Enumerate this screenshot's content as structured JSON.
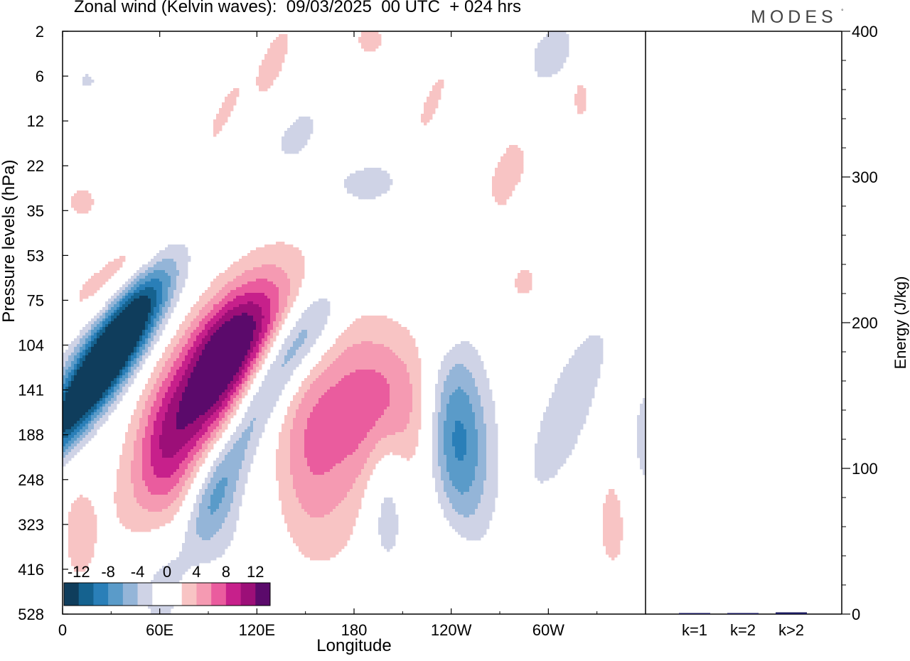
{
  "header": {
    "title": "Zonal wind (Kelvin waves):  09/03/2025  00 UTC  + 024 hrs",
    "logo": "MODES",
    "logo_mark": "°"
  },
  "chart_data": [
    {
      "type": "heatmap",
      "title": "Zonal wind (Kelvin waves):  09/03/2025  00 UTC  + 024 hrs",
      "xlabel": "Longitude",
      "ylabel": "Pressure levels (hPa)",
      "x_ticks": [
        "0",
        "60E",
        "120E",
        "180",
        "120W",
        "60W"
      ],
      "x_tick_values_deg": [
        0,
        60,
        120,
        180,
        240,
        300
      ],
      "xlim_deg": [
        0,
        360
      ],
      "y_ticks": [
        "2",
        "6",
        "12",
        "22",
        "35",
        "53",
        "75",
        "104",
        "141",
        "188",
        "248",
        "323",
        "416",
        "528"
      ],
      "y_axis_top_to_bottom": true,
      "colorbar": {
        "labels": [
          "-12",
          "-8",
          "-4",
          "0",
          "4",
          "8",
          "12"
        ],
        "levels": [
          -14,
          -12,
          -10,
          -8,
          -6,
          -4,
          -2,
          2,
          4,
          6,
          8,
          10,
          12,
          14
        ],
        "colors": [
          "#0f3d5c",
          "#15628f",
          "#2a7fb8",
          "#5a9bc9",
          "#94b5d8",
          "#cfd3e6",
          "#ffffff",
          "#ffffff",
          "#f8c4c4",
          "#f59ab2",
          "#ea5c9e",
          "#c7208b",
          "#9c0f78",
          "#5b0a6b"
        ]
      },
      "features": [
        {
          "lon": 15,
          "level_index": 8.0,
          "value": -13,
          "sx": 11,
          "sy": 1.4,
          "tilt": -0.7
        },
        {
          "lon": 30,
          "level_index": 7.1,
          "value": -8,
          "sx": 16,
          "sy": 1.1,
          "tilt": -0.6
        },
        {
          "lon": 42,
          "level_index": 6.3,
          "value": -4,
          "sx": 14,
          "sy": 0.8,
          "tilt": -0.55
        },
        {
          "lon": 50,
          "level_index": 5.7,
          "value": -2.5,
          "sx": 12,
          "sy": 0.6,
          "tilt": -0.5
        },
        {
          "lon": 28,
          "level_index": 5.9,
          "value": 3.5,
          "sx": 20,
          "sy": 0.6,
          "tilt": -0.55
        },
        {
          "lon": 45,
          "level_index": 5.1,
          "value": 2.5,
          "sx": 12,
          "sy": 0.45,
          "tilt": -0.5
        },
        {
          "lon": 88,
          "level_index": 8.1,
          "value": 9,
          "sx": 20,
          "sy": 1.7,
          "tilt": -0.55
        },
        {
          "lon": 100,
          "level_index": 7.3,
          "value": 6,
          "sx": 18,
          "sy": 1.2,
          "tilt": -0.5
        },
        {
          "lon": 108,
          "level_index": 6.7,
          "value": 3,
          "sx": 24,
          "sy": 0.8,
          "tilt": -0.5
        },
        {
          "lon": 62,
          "level_index": 9.5,
          "value": 3,
          "sx": 12,
          "sy": 1.4,
          "tilt": 0
        },
        {
          "lon": 105,
          "level_index": 9.5,
          "value": -5,
          "sx": 10,
          "sy": 1.6,
          "tilt": -0.5
        },
        {
          "lon": 95,
          "level_index": 10.7,
          "value": -3,
          "sx": 12,
          "sy": 1.0,
          "tilt": 0
        },
        {
          "lon": 138,
          "level_index": 7.3,
          "value": -5,
          "sx": 14,
          "sy": 1.0,
          "tilt": -0.6
        },
        {
          "lon": 152,
          "level_index": 6.6,
          "value": -3,
          "sx": 12,
          "sy": 0.7,
          "tilt": -0.5
        },
        {
          "lon": 150,
          "level_index": 9.3,
          "value": 4.5,
          "sx": 14,
          "sy": 1.6,
          "tilt": 0
        },
        {
          "lon": 172,
          "level_index": 9.2,
          "value": 3,
          "sx": 16,
          "sy": 2.0,
          "tilt": 0
        },
        {
          "lon": 198,
          "level_index": 8.3,
          "value": 6.5,
          "sx": 22,
          "sy": 1.2,
          "tilt": 0
        },
        {
          "lon": 200,
          "level_index": 10.5,
          "value": -4,
          "sx": 9,
          "sy": 1.3,
          "tilt": 0
        },
        {
          "lon": 247,
          "level_index": 9.5,
          "value": -6.5,
          "sx": 14,
          "sy": 1.5,
          "tilt": 0
        },
        {
          "lon": 240,
          "level_index": 8.5,
          "value": -3.5,
          "sx": 11,
          "sy": 1.2,
          "tilt": 0
        },
        {
          "lon": 313,
          "level_index": 8.4,
          "value": -4,
          "sx": 12,
          "sy": 1.4,
          "tilt": -0.4
        },
        {
          "lon": 355,
          "level_index": 7.5,
          "value": 3,
          "sx": 10,
          "sy": 1.0,
          "tilt": -0.4
        },
        {
          "lon": 360,
          "level_index": 8.5,
          "value": -3.5,
          "sx": 8,
          "sy": 1.5,
          "tilt": 0
        },
        {
          "lon": 243,
          "level_index": 12.2,
          "value": 2.5,
          "sx": 12,
          "sy": 1.6,
          "tilt": 0.3
        },
        {
          "lon": 200,
          "level_index": 12.9,
          "value": 2.2,
          "sx": 12,
          "sy": 0.7,
          "tilt": 0
        },
        {
          "lon": 340,
          "level_index": 11.0,
          "value": 2.5,
          "sx": 10,
          "sy": 1.2,
          "tilt": 0
        },
        {
          "lon": 10,
          "level_index": 11.2,
          "value": 2.5,
          "sx": 9,
          "sy": 1.0,
          "tilt": 0
        },
        {
          "lon": 60,
          "level_index": 12.4,
          "value": -2.5,
          "sx": 10,
          "sy": 1.0,
          "tilt": 0
        },
        {
          "lon": 188,
          "level_index": 3.4,
          "value": -2.5,
          "sx": 26,
          "sy": 0.55,
          "tilt": -0.3
        },
        {
          "lon": 145,
          "level_index": 2.3,
          "value": -2.5,
          "sx": 12,
          "sy": 0.6,
          "tilt": -0.5
        },
        {
          "lon": 100,
          "level_index": 1.8,
          "value": 2.5,
          "sx": 6,
          "sy": 0.8,
          "tilt": -0.5
        },
        {
          "lon": 130,
          "level_index": 0.7,
          "value": 3.5,
          "sx": 6,
          "sy": 0.6,
          "tilt": -0.4
        },
        {
          "lon": 190,
          "level_index": 0.2,
          "value": 2.5,
          "sx": 10,
          "sy": 0.4,
          "tilt": 0
        },
        {
          "lon": 302,
          "level_index": 0.5,
          "value": -3.5,
          "sx": 10,
          "sy": 0.5,
          "tilt": -0.3
        },
        {
          "lon": 228,
          "level_index": 1.6,
          "value": 2.5,
          "sx": 6,
          "sy": 0.8,
          "tilt": -0.4
        },
        {
          "lon": 280,
          "level_index": 2.9,
          "value": 2.5,
          "sx": 7,
          "sy": 0.5,
          "tilt": 0
        },
        {
          "lon": 270,
          "level_index": 3.5,
          "value": 2.5,
          "sx": 6,
          "sy": 0.5,
          "tilt": 0
        },
        {
          "lon": 12,
          "level_index": 3.8,
          "value": 2.5,
          "sx": 10,
          "sy": 0.4,
          "tilt": 0
        },
        {
          "lon": 285,
          "level_index": 5.6,
          "value": 2.5,
          "sx": 8,
          "sy": 0.4,
          "tilt": 0
        },
        {
          "lon": 236,
          "level_index": 6.3,
          "value": 2.5,
          "sx": 8,
          "sy": 0.5,
          "tilt": 0
        },
        {
          "lon": 320,
          "level_index": 1.5,
          "value": 2.5,
          "sx": 5,
          "sy": 0.5,
          "tilt": 0
        },
        {
          "lon": 15,
          "level_index": 1.1,
          "value": -2.2,
          "sx": 8,
          "sy": 0.3,
          "tilt": 0
        }
      ]
    },
    {
      "type": "bar",
      "categories": [
        "k=1",
        "k=2",
        "k>2"
      ],
      "values": [
        0.4,
        0.3,
        1.2
      ],
      "ylabel": "Energy (J/kg)",
      "ylim": [
        0,
        400
      ],
      "y_ticks": [
        "0",
        "100",
        "200",
        "300",
        "400"
      ],
      "y_tick_values": [
        0,
        100,
        200,
        300,
        400
      ],
      "minor_step": 20,
      "bar_color": "#1a1a5e"
    }
  ]
}
